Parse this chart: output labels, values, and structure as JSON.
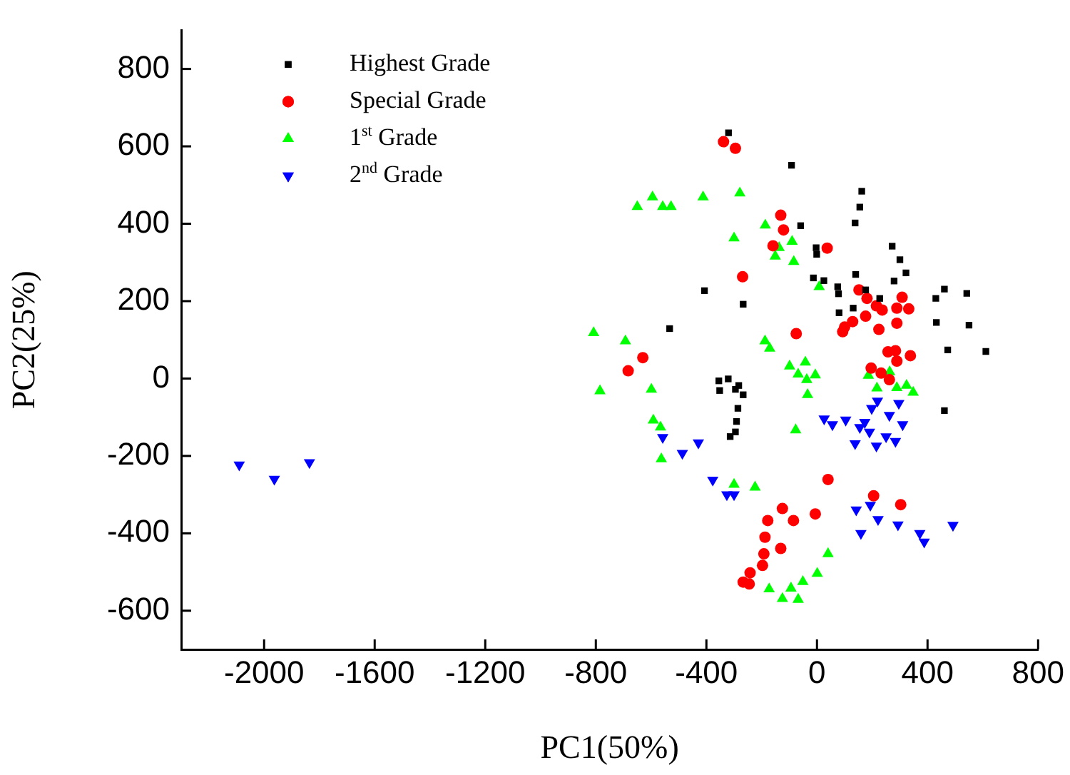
{
  "chart_data": {
    "type": "scatter",
    "xlabel": "PC1(50%)",
    "ylabel": "PC2(25%)",
    "xlim": [
      -2300,
      800
    ],
    "ylim": [
      -700,
      900
    ],
    "xticks": [
      -2000,
      -1600,
      -1200,
      -800,
      -400,
      0,
      400,
      800
    ],
    "yticks": [
      -600,
      -400,
      -200,
      0,
      200,
      400,
      600,
      800
    ],
    "grid": false,
    "legend": "top left",
    "series": [
      {
        "name": "Highest Grade",
        "color": "#000000",
        "marker": "square",
        "x": [
          -320,
          -92,
          162,
          155,
          138,
          -59,
          -3,
          -1,
          272,
          300,
          322,
          279,
          140,
          -13,
          25,
          75,
          78,
          176,
          227,
          131,
          80,
          -407,
          -267,
          -533,
          461,
          430,
          542,
          432,
          550,
          473,
          611,
          461,
          -355,
          -321,
          -283,
          -352,
          -295,
          -267,
          -286,
          -291,
          -295,
          -314
        ],
        "values": [
          635,
          551,
          484,
          443,
          402,
          395,
          338,
          321,
          342,
          307,
          273,
          252,
          269,
          260,
          253,
          237,
          219,
          229,
          207,
          182,
          170,
          227,
          192,
          129,
          231,
          207,
          220,
          145,
          138,
          74,
          70,
          -83,
          -6,
          -1,
          -18,
          -31,
          -28,
          -42,
          -77,
          -111,
          -138,
          -150
        ]
      },
      {
        "name": "Special Grade",
        "color": "#ff0000",
        "marker": "circle",
        "x": [
          -338,
          -295,
          -131,
          -121,
          -159,
          37,
          -269,
          152,
          181,
          215,
          236,
          176,
          129,
          100,
          93,
          224,
          289,
          308,
          289,
          332,
          -75,
          -630,
          -683,
          257,
          284,
          289,
          338,
          196,
          232,
          262,
          40,
          205,
          303,
          -125,
          -6,
          -178,
          -85,
          -188,
          -131,
          -192,
          -197,
          -242,
          -267,
          -245
        ],
        "values": [
          612,
          595,
          422,
          384,
          343,
          337,
          263,
          229,
          207,
          188,
          177,
          161,
          147,
          133,
          121,
          127,
          143,
          210,
          182,
          180,
          116,
          54,
          20,
          69,
          72,
          45,
          59,
          27,
          14,
          -3,
          -261,
          -303,
          -326,
          -336,
          -350,
          -367,
          -367,
          -410,
          -439,
          -453,
          -483,
          -502,
          -526,
          -531
        ]
      },
      {
        "name": "1$^{st}$ Grade",
        "color": "#00ff00",
        "marker": "triangle",
        "x": [
          -650,
          -595,
          -558,
          -528,
          -412,
          -279,
          -300,
          -187,
          -90,
          -137,
          -151,
          -84,
          8,
          -808,
          -693,
          -188,
          -171,
          -785,
          -599,
          -592,
          -99,
          -42,
          -68,
          -6,
          -37,
          -34,
          186,
          263,
          217,
          289,
          324,
          348,
          -77,
          -563,
          -566,
          -224,
          -300,
          40,
          1,
          -51,
          -94,
          -125,
          -68,
          -173
        ],
        "values": [
          444,
          469,
          444,
          444,
          469,
          479,
          363,
          396,
          354,
          338,
          316,
          302,
          237,
          118,
          97,
          97,
          78,
          -32,
          -28,
          -108,
          32,
          42,
          11,
          9,
          -3,
          -42,
          8,
          17,
          -25,
          -24,
          -18,
          -36,
          -133,
          -208,
          -126,
          -281,
          -274,
          -453,
          -504,
          -525,
          -542,
          -569,
          -571,
          -544
        ]
      },
      {
        "name": "2$^{nd}$ Grade",
        "color": "#0000ff",
        "marker": "triangle-down",
        "x": [
          -2090,
          -1963,
          -1836,
          -558,
          -487,
          -429,
          -377,
          -326,
          -300,
          26,
          56,
          104,
          155,
          138,
          190,
          215,
          219,
          198,
          262,
          296,
          310,
          284,
          250,
          173,
          142,
          193,
          221,
          159,
          293,
          372,
          388,
          492
        ],
        "values": [
          -223,
          -260,
          -217,
          -152,
          -193,
          -166,
          -262,
          -300,
          -300,
          -104,
          -119,
          -107,
          -126,
          -168,
          -138,
          -174,
          -58,
          -77,
          -95,
          -64,
          -119,
          -162,
          -150,
          -113,
          -339,
          -327,
          -364,
          -400,
          -378,
          -400,
          -422,
          -379
        ]
      }
    ]
  }
}
